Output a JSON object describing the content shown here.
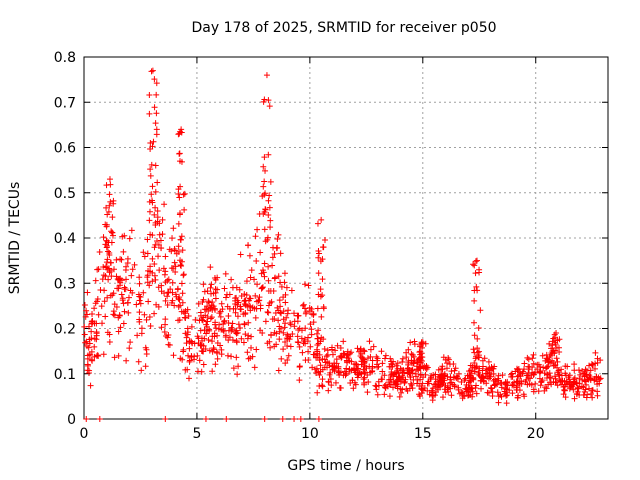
{
  "chart_data": {
    "type": "scatter",
    "title": "Day 178 of 2025, SRMTID for receiver p050",
    "xlabel": "GPS time / hours",
    "ylabel": "SRMTID / TECUs",
    "xlim": [
      0,
      23.2
    ],
    "ylim": [
      0,
      0.8
    ],
    "x_ticks": [
      0,
      5,
      10,
      15,
      20
    ],
    "x_tick_labels": [
      "0",
      "5",
      "10",
      "15",
      "20"
    ],
    "y_ticks": [
      0,
      0.1,
      0.2,
      0.3,
      0.4,
      0.5,
      0.6,
      0.7,
      0.8
    ],
    "y_tick_labels": [
      "0",
      "0.1",
      "0.2",
      "0.3",
      "0.4",
      "0.5",
      "0.6",
      "0.7",
      "0.8"
    ],
    "grid": true,
    "marker": "+",
    "color": "#ff0000",
    "envelope": {
      "description": "approximate central trend of the dense point cloud (hour, SRMTID)",
      "points": [
        [
          0,
          0.2
        ],
        [
          0.3,
          0.18
        ],
        [
          0.6,
          0.22
        ],
        [
          1.0,
          0.3
        ],
        [
          1.5,
          0.25
        ],
        [
          2.0,
          0.28
        ],
        [
          2.5,
          0.22
        ],
        [
          3.0,
          0.35
        ],
        [
          3.3,
          0.38
        ],
        [
          3.7,
          0.27
        ],
        [
          4.2,
          0.3
        ],
        [
          4.6,
          0.15
        ],
        [
          5.0,
          0.17
        ],
        [
          5.5,
          0.22
        ],
        [
          6.0,
          0.2
        ],
        [
          6.5,
          0.22
        ],
        [
          7.0,
          0.23
        ],
        [
          7.5,
          0.27
        ],
        [
          8.0,
          0.32
        ],
        [
          8.5,
          0.28
        ],
        [
          9.0,
          0.2
        ],
        [
          9.5,
          0.17
        ],
        [
          10.0,
          0.2
        ],
        [
          10.5,
          0.12
        ],
        [
          11.0,
          0.11
        ],
        [
          11.5,
          0.13
        ],
        [
          12.0,
          0.11
        ],
        [
          12.5,
          0.12
        ],
        [
          13.0,
          0.11
        ],
        [
          13.5,
          0.1
        ],
        [
          14.0,
          0.09
        ],
        [
          14.5,
          0.12
        ],
        [
          15.0,
          0.1
        ],
        [
          15.5,
          0.07
        ],
        [
          16.0,
          0.1
        ],
        [
          16.5,
          0.08
        ],
        [
          17.0,
          0.07
        ],
        [
          17.4,
          0.12
        ],
        [
          17.8,
          0.1
        ],
        [
          18.2,
          0.08
        ],
        [
          18.7,
          0.07
        ],
        [
          19.2,
          0.08
        ],
        [
          19.7,
          0.1
        ],
        [
          20.2,
          0.09
        ],
        [
          20.7,
          0.12
        ],
        [
          21.2,
          0.09
        ],
        [
          21.7,
          0.08
        ],
        [
          22.2,
          0.08
        ],
        [
          22.7,
          0.1
        ]
      ]
    },
    "peaks": [
      [
        3.05,
        0.77
      ],
      [
        8.1,
        0.76
      ],
      [
        4.3,
        0.64
      ],
      [
        1.15,
        0.53
      ],
      [
        10.5,
        0.44
      ],
      [
        17.4,
        0.35
      ],
      [
        20.9,
        0.19
      ],
      [
        15.0,
        0.17
      ]
    ],
    "zero_points": [
      0.1,
      0.7,
      3.6,
      5.4,
      6.3,
      8.0,
      8.8,
      9.3,
      9.6,
      10.4
    ]
  }
}
